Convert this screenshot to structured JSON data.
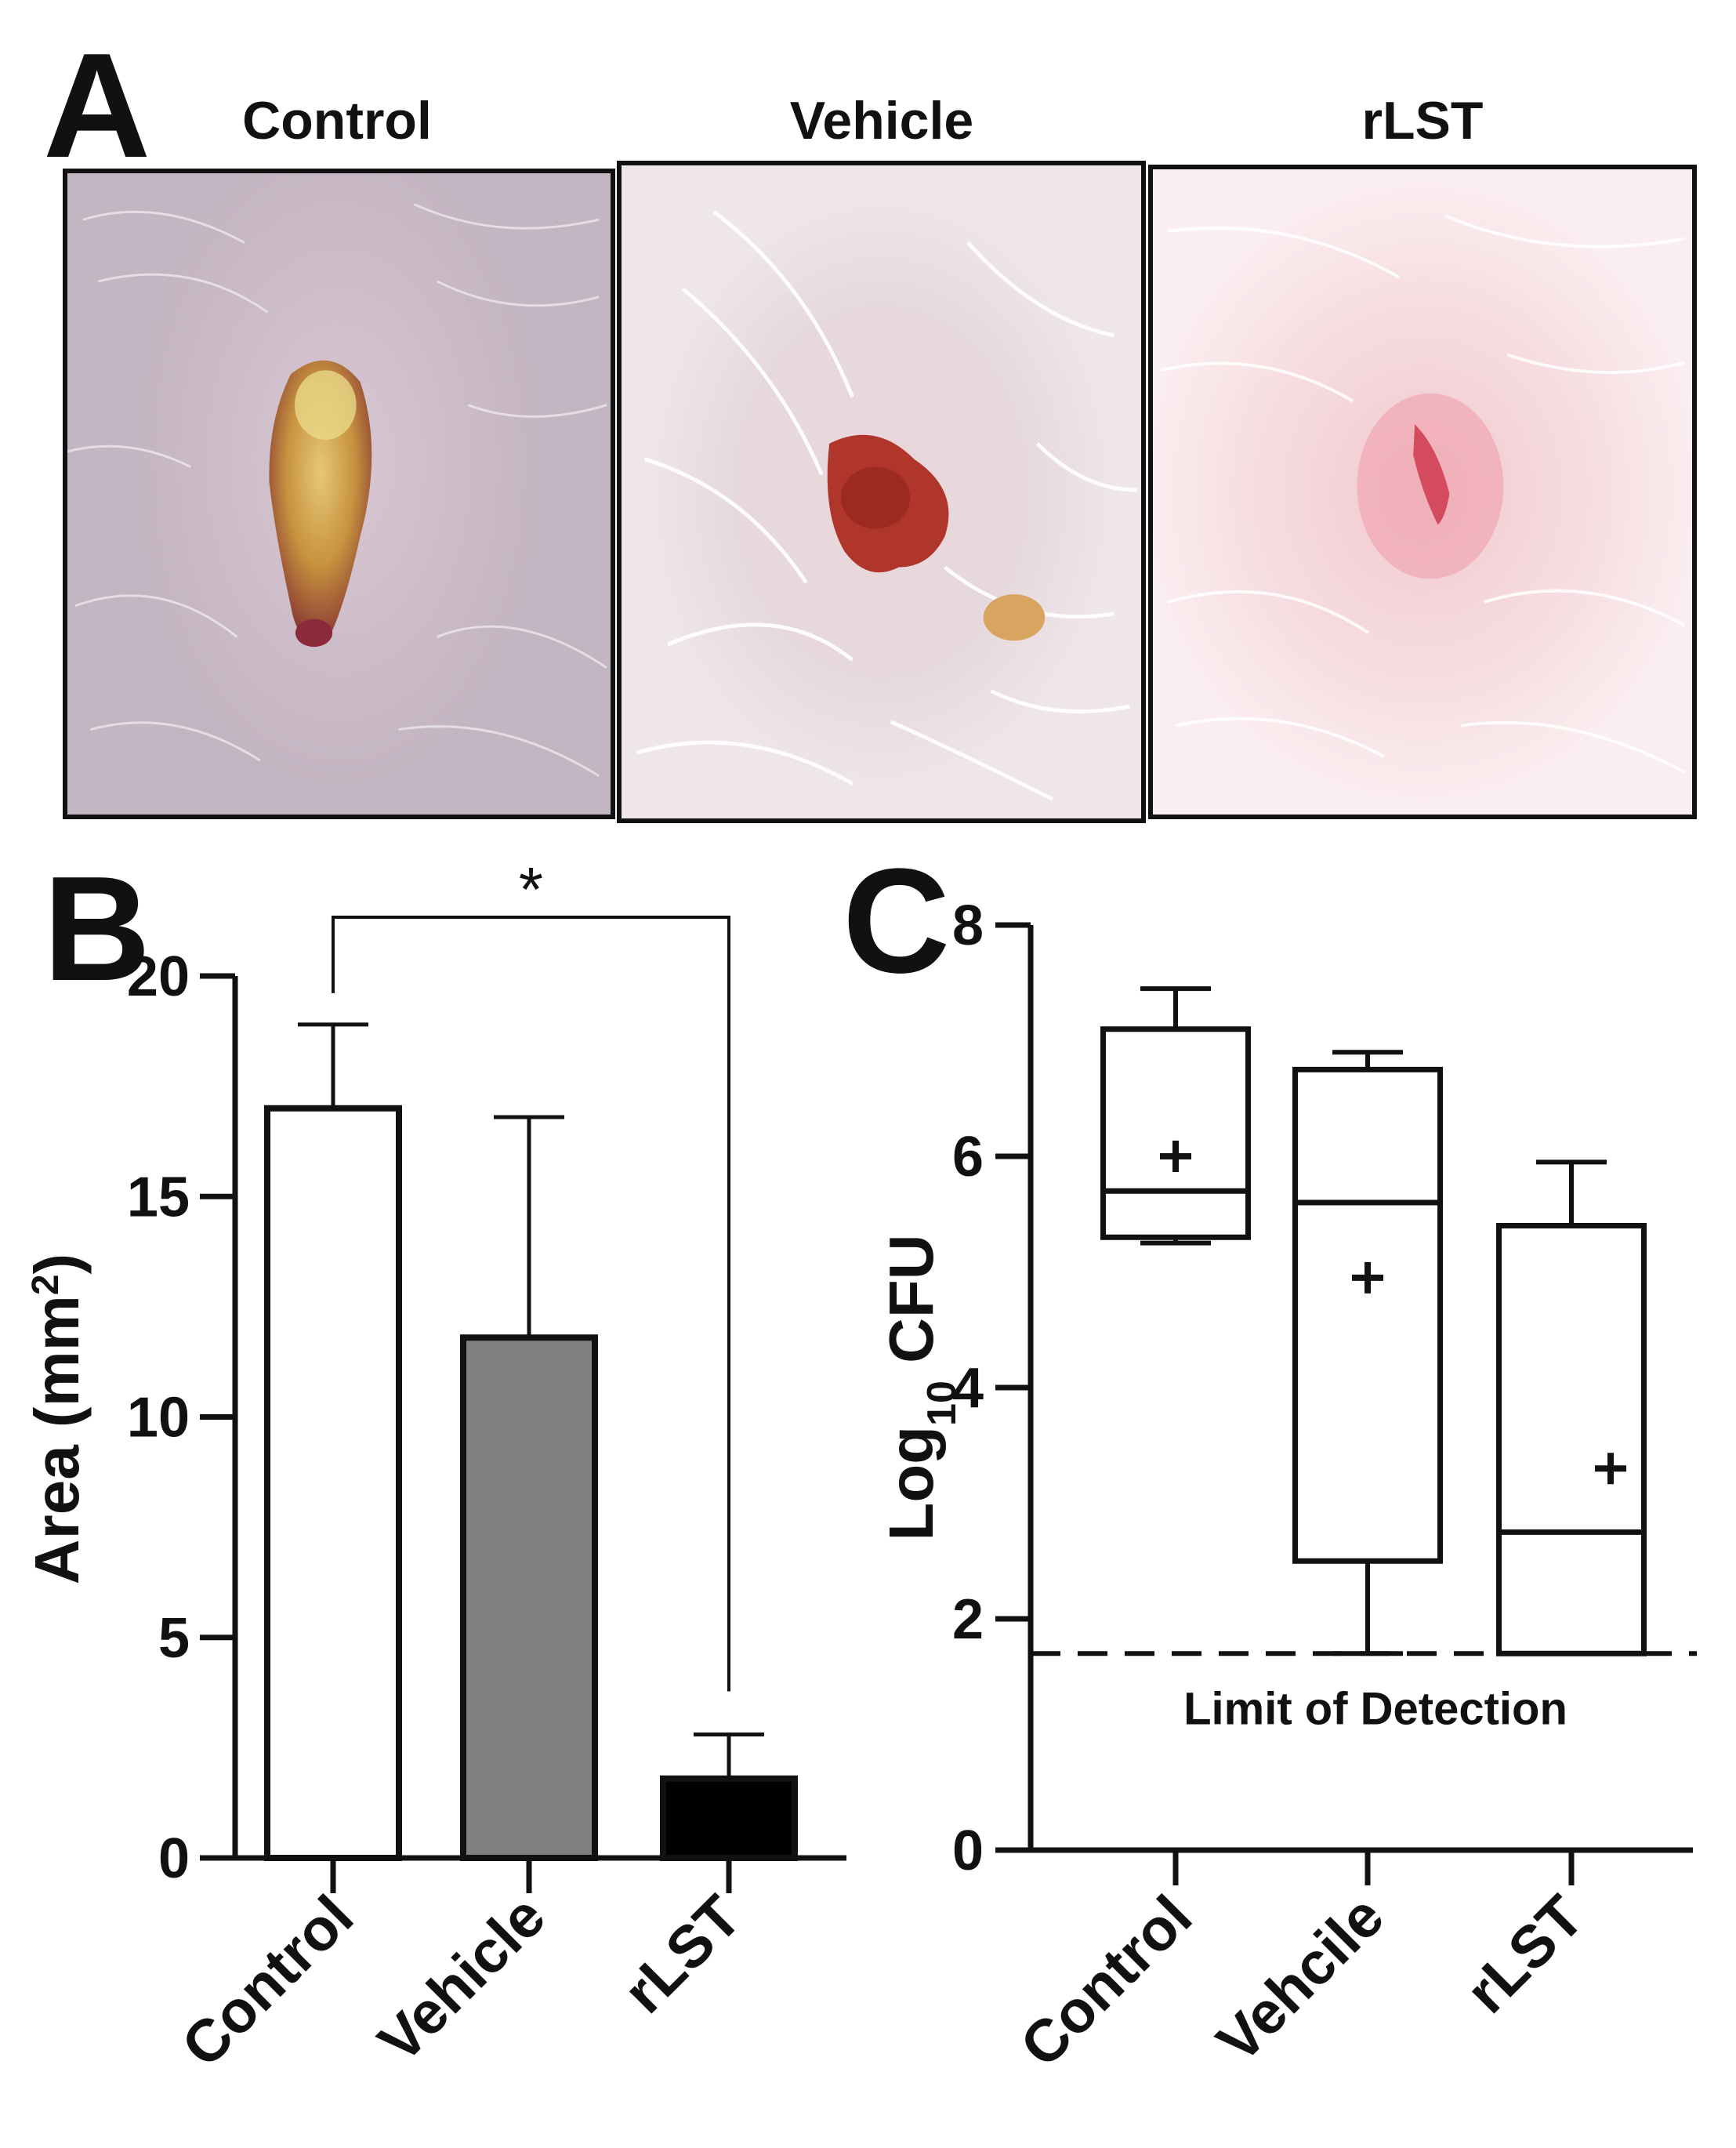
{
  "panel_a": {
    "letter": "A",
    "photos": [
      {
        "title": "Control",
        "image_name": "control-wound-photo"
      },
      {
        "title": "Vehicle",
        "image_name": "vehicle-wound-photo"
      },
      {
        "title": "rLST",
        "image_name": "rlst-wound-photo"
      }
    ]
  },
  "colors": {
    "control_bar": "#ffffff",
    "vehicle_bar": "#808080",
    "rlst_bar": "#000000",
    "axis": "#111111"
  },
  "chart_data": [
    {
      "panel": "B",
      "type": "bar",
      "categories": [
        "Control",
        "Vehicle",
        "rLST"
      ],
      "values": [
        17.0,
        11.8,
        1.8
      ],
      "error_upper": [
        18.9,
        16.8,
        2.8
      ],
      "bar_colors": [
        "#ffffff",
        "#808080",
        "#000000"
      ],
      "ylabel": "Area (mm",
      "ylabel_sup": "2",
      "ylabel_close": ")",
      "ylim": [
        0,
        20
      ],
      "yticks": [
        0,
        5,
        10,
        15,
        20
      ],
      "significance": {
        "from": "Control",
        "to": "rLST",
        "label": "*"
      }
    },
    {
      "panel": "C",
      "type": "box",
      "categories": [
        "Control",
        "Vehcile",
        "rLST"
      ],
      "boxes": [
        {
          "whisker_low": 5.25,
          "q1": 5.3,
          "median": 5.7,
          "q3": 7.1,
          "whisker_high": 7.45,
          "mean": 6.0
        },
        {
          "whisker_low": 1.7,
          "q1": 2.5,
          "median": 5.6,
          "q3": 6.75,
          "whisker_high": 6.9,
          "mean": 4.95
        },
        {
          "whisker_low": 1.7,
          "q1": 1.7,
          "median": 2.75,
          "q3": 5.4,
          "whisker_high": 5.95,
          "mean": 3.3
        }
      ],
      "ylabel_main": "Log",
      "ylabel_sub": "10",
      "ylabel_rest": " CFU",
      "ylim": [
        0,
        8
      ],
      "yticks": [
        0,
        2,
        4,
        6,
        8
      ],
      "limit_of_detection": {
        "value": 1.7,
        "label": "Limit of Detection"
      }
    }
  ]
}
